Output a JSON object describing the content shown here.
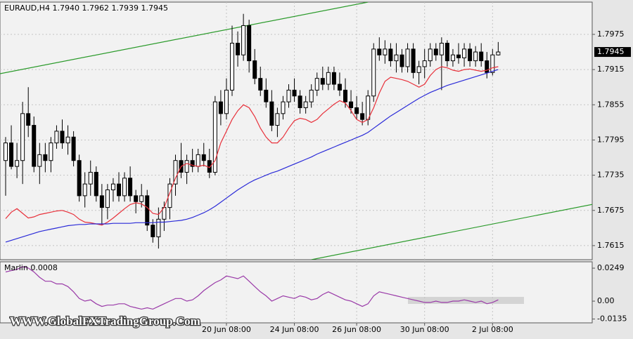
{
  "watermark": "WWW.GlobalFXTradingGroup.Com",
  "chart_data": [
    {
      "type": "candlestick",
      "title": "EURAUD,H4  1.7940 1.7962 1.7939 1.7945",
      "categories": [
        null,
        null,
        null,
        null,
        null,
        null,
        null,
        null,
        null,
        null,
        null,
        null,
        null,
        null,
        null,
        null,
        null,
        null,
        null,
        null,
        null,
        null,
        null,
        null,
        null,
        null,
        null,
        null,
        null,
        null,
        null,
        null,
        null,
        null,
        null,
        null,
        null,
        null,
        null,
        "20 Jun 08:00",
        null,
        null,
        null,
        null,
        null,
        null,
        null,
        null,
        null,
        null,
        null,
        "24 Jun 08:00",
        null,
        null,
        null,
        null,
        null,
        null,
        null,
        null,
        null,
        null,
        "26 Jun 08:00",
        null,
        null,
        null,
        null,
        null,
        null,
        null,
        null,
        null,
        null,
        null,
        "30 Jun 08:00",
        null,
        null,
        null,
        null,
        null,
        null,
        null,
        null,
        null,
        null,
        null,
        "2 Jul 08:00",
        null
      ],
      "open": [
        1.776,
        1.779,
        1.775,
        1.776,
        1.784,
        1.782,
        1.775,
        1.777,
        1.776,
        1.779,
        1.781,
        1.779,
        1.78,
        1.776,
        1.77,
        1.772,
        1.774,
        1.77,
        1.768,
        1.771,
        1.772,
        1.77,
        1.773,
        1.77,
        1.769,
        1.77,
        1.765,
        1.763,
        1.766,
        1.768,
        1.772,
        1.776,
        1.774,
        1.776,
        1.775,
        1.777,
        1.776,
        1.774,
        1.786,
        1.784,
        1.788,
        1.796,
        1.794,
        1.799,
        1.793,
        1.79,
        1.788,
        1.786,
        1.782,
        1.784,
        1.786,
        1.788,
        1.787,
        1.785,
        1.786,
        1.788,
        1.79,
        1.789,
        1.791,
        1.789,
        1.788,
        1.786,
        1.785,
        1.784,
        1.783,
        1.787,
        1.795,
        1.794,
        1.795,
        1.793,
        1.794,
        1.792,
        1.795,
        1.791,
        1.792,
        1.793,
        1.795,
        1.794,
        1.796,
        1.793,
        1.794,
        1.7935,
        1.795,
        1.793,
        1.7945,
        1.793,
        1.791,
        1.794
      ],
      "high": [
        1.78,
        1.782,
        1.779,
        1.786,
        1.7885,
        1.7835,
        1.779,
        1.779,
        1.78,
        1.782,
        1.783,
        1.782,
        1.781,
        1.777,
        1.774,
        1.776,
        1.775,
        1.772,
        1.772,
        1.773,
        1.774,
        1.774,
        1.775,
        1.771,
        1.772,
        1.771,
        1.766,
        1.768,
        1.769,
        1.773,
        1.777,
        1.779,
        1.777,
        1.778,
        1.778,
        1.779,
        1.778,
        1.787,
        1.788,
        1.79,
        1.799,
        1.798,
        1.801,
        1.8,
        1.795,
        1.792,
        1.79,
        1.788,
        1.785,
        1.787,
        1.789,
        1.79,
        1.788,
        1.787,
        1.789,
        1.791,
        1.792,
        1.792,
        1.792,
        1.791,
        1.79,
        1.788,
        1.787,
        1.786,
        1.788,
        1.796,
        1.797,
        1.7965,
        1.796,
        1.796,
        1.795,
        1.796,
        1.796,
        1.793,
        1.795,
        1.796,
        1.796,
        1.797,
        1.7965,
        1.795,
        1.796,
        1.796,
        1.796,
        1.7955,
        1.796,
        1.7945,
        1.795,
        1.7962
      ],
      "low": [
        1.77,
        1.7745,
        1.773,
        1.772,
        1.78,
        1.774,
        1.772,
        1.774,
        1.774,
        1.778,
        1.778,
        1.777,
        1.775,
        1.769,
        1.768,
        1.77,
        1.769,
        1.765,
        1.766,
        1.769,
        1.769,
        1.769,
        1.769,
        1.767,
        1.768,
        1.764,
        1.762,
        1.761,
        1.764,
        1.766,
        1.77,
        1.773,
        1.772,
        1.774,
        1.774,
        1.775,
        1.773,
        1.7735,
        1.782,
        1.783,
        1.787,
        1.792,
        1.793,
        1.791,
        1.789,
        1.787,
        1.785,
        1.781,
        1.78,
        1.783,
        1.785,
        1.786,
        1.784,
        1.784,
        1.785,
        1.787,
        1.788,
        1.788,
        1.788,
        1.787,
        1.785,
        1.784,
        1.783,
        1.782,
        1.782,
        1.786,
        1.793,
        1.7925,
        1.792,
        1.791,
        1.791,
        1.791,
        1.79,
        1.789,
        1.79,
        1.792,
        1.793,
        1.788,
        1.792,
        1.792,
        1.7925,
        1.792,
        1.792,
        1.792,
        1.792,
        1.79,
        1.7905,
        1.7939
      ],
      "close": [
        1.779,
        1.775,
        1.776,
        1.784,
        1.782,
        1.775,
        1.777,
        1.776,
        1.779,
        1.781,
        1.779,
        1.78,
        1.776,
        1.77,
        1.772,
        1.774,
        1.77,
        1.768,
        1.771,
        1.772,
        1.77,
        1.773,
        1.77,
        1.769,
        1.77,
        1.765,
        1.763,
        1.766,
        1.768,
        1.772,
        1.776,
        1.774,
        1.776,
        1.775,
        1.777,
        1.776,
        1.774,
        1.786,
        1.784,
        1.788,
        1.796,
        1.794,
        1.799,
        1.793,
        1.79,
        1.788,
        1.786,
        1.782,
        1.784,
        1.786,
        1.788,
        1.787,
        1.785,
        1.786,
        1.788,
        1.79,
        1.789,
        1.791,
        1.789,
        1.788,
        1.786,
        1.785,
        1.784,
        1.783,
        1.787,
        1.795,
        1.794,
        1.795,
        1.793,
        1.794,
        1.792,
        1.795,
        1.791,
        1.792,
        1.793,
        1.795,
        1.794,
        1.796,
        1.793,
        1.794,
        1.7935,
        1.795,
        1.793,
        1.7945,
        1.793,
        1.791,
        1.794,
        1.7945
      ],
      "up_color": "#ffffff",
      "down_color": "#000000",
      "lines": [
        {
          "color": "#e8303a",
          "values": [
            1.7661,
            1.7672,
            1.7678,
            1.767,
            1.7662,
            1.7664,
            1.7668,
            1.767,
            1.7672,
            1.7674,
            1.7675,
            1.7672,
            1.7668,
            1.766,
            1.7655,
            1.7654,
            1.7652,
            1.765,
            1.7655,
            1.7662,
            1.767,
            1.7678,
            1.7685,
            1.7688,
            1.7686,
            1.768,
            1.767,
            1.7668,
            1.768,
            1.7705,
            1.773,
            1.775,
            1.7755,
            1.7752,
            1.775,
            1.7752,
            1.7748,
            1.776,
            1.779,
            1.781,
            1.783,
            1.7845,
            1.7855,
            1.785,
            1.7835,
            1.7815,
            1.78,
            1.779,
            1.779,
            1.78,
            1.7815,
            1.7828,
            1.7832,
            1.783,
            1.7825,
            1.783,
            1.784,
            1.7848,
            1.7856,
            1.7862,
            1.7858,
            1.7845,
            1.783,
            1.7825,
            1.783,
            1.785,
            1.7875,
            1.7895,
            1.7902,
            1.79,
            1.7898,
            1.7895,
            1.789,
            1.7885,
            1.789,
            1.7905,
            1.7915,
            1.792,
            1.7918,
            1.7914,
            1.7912,
            1.7915,
            1.7916,
            1.7914,
            1.7912,
            1.7914,
            1.7918,
            1.792
          ]
        },
        {
          "color": "#2a2ad8",
          "values": [
            1.7621,
            1.7624,
            1.7627,
            1.763,
            1.7633,
            1.7636,
            1.7639,
            1.7641,
            1.7643,
            1.7645,
            1.7647,
            1.7649,
            1.765,
            1.7651,
            1.7651,
            1.7652,
            1.7652,
            1.7652,
            1.7652,
            1.7653,
            1.7653,
            1.7653,
            1.7653,
            1.7654,
            1.7654,
            1.7654,
            1.7654,
            1.7655,
            1.7655,
            1.7656,
            1.7657,
            1.7658,
            1.766,
            1.7663,
            1.7667,
            1.7671,
            1.7676,
            1.7682,
            1.7689,
            1.7696,
            1.7703,
            1.771,
            1.7716,
            1.7722,
            1.7727,
            1.7731,
            1.7735,
            1.7739,
            1.7742,
            1.7746,
            1.775,
            1.7754,
            1.7758,
            1.7762,
            1.7766,
            1.7771,
            1.7775,
            1.7779,
            1.7783,
            1.7787,
            1.7791,
            1.7795,
            1.7799,
            1.7803,
            1.7808,
            1.7815,
            1.7822,
            1.7829,
            1.7836,
            1.7842,
            1.7848,
            1.7854,
            1.786,
            1.7866,
            1.7871,
            1.7876,
            1.788,
            1.7884,
            1.7888,
            1.7891,
            1.7894,
            1.7897,
            1.79,
            1.7903,
            1.7906,
            1.7909,
            1.7912,
            1.7915
          ]
        }
      ],
      "trendlines": [
        {
          "color": "#2a9a2a",
          "x": [
            -1,
            64
          ],
          "y": [
            1.7908,
            1.803
          ]
        },
        {
          "color": "#2a9a2a",
          "x": [
            54,
            104
          ],
          "y": [
            1.7591,
            1.7686
          ]
        }
      ],
      "last_price": {
        "value": 1.7945,
        "label": "1.7945"
      },
      "ylim": [
        1.7591,
        1.803
      ],
      "yticks": [
        1.7975,
        1.7915,
        1.7855,
        1.7795,
        1.7735,
        1.7675,
        1.7615
      ],
      "grid": true
    },
    {
      "type": "line",
      "title": "Marlin 0.0008",
      "color": "#9a3aa8",
      "values": [
        0.022,
        0.023,
        0.024,
        0.026,
        0.025,
        0.022,
        0.018,
        0.015,
        0.015,
        0.013,
        0.013,
        0.011,
        0.007,
        0.002,
        0.0,
        0.001,
        -0.002,
        -0.004,
        -0.003,
        -0.003,
        -0.002,
        -0.002,
        -0.004,
        -0.005,
        -0.006,
        -0.005,
        -0.006,
        -0.004,
        -0.002,
        0.0,
        0.002,
        0.002,
        0.0,
        0.001,
        0.004,
        0.008,
        0.011,
        0.014,
        0.016,
        0.019,
        0.018,
        0.017,
        0.019,
        0.015,
        0.011,
        0.007,
        0.004,
        0.0,
        0.002,
        0.004,
        0.003,
        0.002,
        0.004,
        0.003,
        0.001,
        0.002,
        0.005,
        0.007,
        0.005,
        0.003,
        0.001,
        0.0,
        -0.002,
        -0.004,
        -0.002,
        0.004,
        0.007,
        0.006,
        0.005,
        0.004,
        0.003,
        0.002,
        0.001,
        0.0,
        -0.001,
        -0.001,
        0.0,
        -0.001,
        -0.001,
        0.0,
        0.0,
        0.001,
        0.0,
        -0.001,
        0.0,
        -0.002,
        -0.001,
        0.001
      ],
      "ylim": [
        -0.0164,
        0.0297
      ],
      "yticks": [
        0.0249,
        {
          "value": 0,
          "label": "0.00"
        },
        -0.0135
      ]
    }
  ]
}
